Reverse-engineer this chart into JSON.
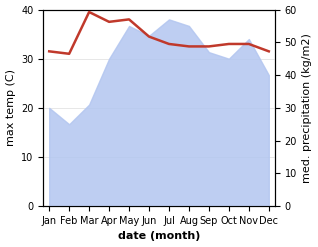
{
  "months": [
    "Jan",
    "Feb",
    "Mar",
    "Apr",
    "May",
    "Jun",
    "Jul",
    "Aug",
    "Sep",
    "Oct",
    "Nov",
    "Dec"
  ],
  "temp": [
    31.5,
    31,
    39.5,
    37.5,
    38,
    34.5,
    33,
    32.5,
    32.5,
    33,
    33,
    31.5
  ],
  "precip_right": [
    30,
    25,
    31,
    45,
    55,
    52,
    57,
    55,
    47,
    45,
    51,
    40
  ],
  "temp_color": "#c0392b",
  "precip_color": "#b3c6f0",
  "bg_color": "#ffffff",
  "left_ylabel": "max temp (C)",
  "right_ylabel": "med. precipitation (kg/m2)",
  "xlabel": "date (month)",
  "ylim_left": [
    0,
    40
  ],
  "ylim_right": [
    0,
    60
  ],
  "label_fontsize": 8,
  "tick_fontsize": 7
}
